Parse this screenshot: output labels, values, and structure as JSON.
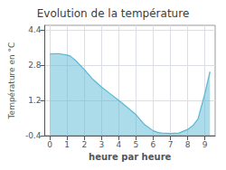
{
  "chart_data": {
    "type": "area",
    "title": "Evolution de la température",
    "xlabel": "heure par heure",
    "ylabel": "Température en °C",
    "x": [
      0,
      0.5,
      1.0,
      1.2,
      1.5,
      2.0,
      2.5,
      3.0,
      3.5,
      4.0,
      4.5,
      5.0,
      5.5,
      6.0,
      6.3,
      6.5,
      7.0,
      7.5,
      8.0,
      8.3,
      8.6,
      9.0,
      9.3
    ],
    "values": [
      3.3,
      3.32,
      3.25,
      3.2,
      3.0,
      2.6,
      2.15,
      1.8,
      1.5,
      1.2,
      0.88,
      0.55,
      0.1,
      -0.18,
      -0.26,
      -0.28,
      -0.3,
      -0.28,
      -0.12,
      0.05,
      0.35,
      1.5,
      2.5
    ],
    "color": "#5ab8d4",
    "xlim": [
      -0.3,
      9.6
    ],
    "ylim": [
      -0.4,
      4.6
    ],
    "xticks": [
      0,
      1,
      2,
      3,
      4,
      5,
      6,
      7,
      8,
      9
    ],
    "yticks": [
      -0.4,
      1.2,
      2.8,
      4.4
    ],
    "grid": true
  }
}
